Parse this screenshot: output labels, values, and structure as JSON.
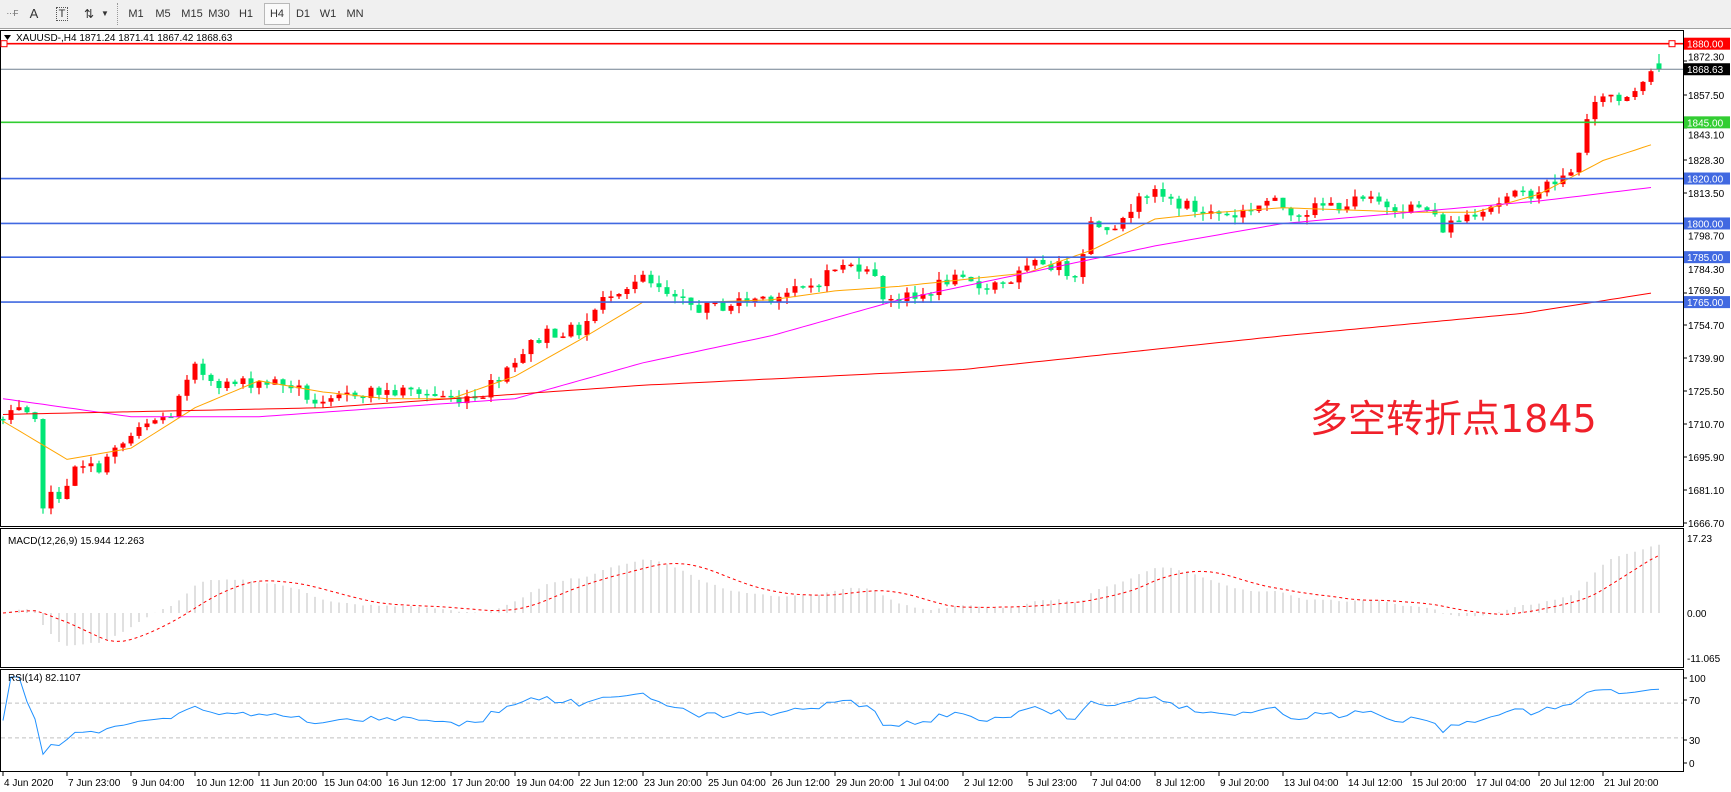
{
  "toolbar": {
    "icons": [
      "fibonacci-fan-icon",
      "text-icon",
      "text-label-icon",
      "arrows-icon",
      "dropdown-icon"
    ],
    "text_icon_label": "A",
    "timeframes": [
      "M1",
      "M5",
      "M15",
      "M30",
      "H1",
      "H4",
      "D1",
      "W1",
      "MN"
    ],
    "selected_timeframe": "H4"
  },
  "header": {
    "text": "XAUUSD-,H4  1871.24 1871.41 1867.42 1868.63"
  },
  "annotation": "多空转折点1845",
  "chart_data": {
    "type": "candlestick",
    "symbol": "XAUUSD-",
    "timeframe": "H4",
    "ohlc_last": {
      "open": 1871.24,
      "high": 1871.41,
      "low": 1867.42,
      "close": 1868.63
    },
    "bar_count": 208,
    "close_path": [
      [
        0,
        1712
      ],
      [
        2,
        1716
      ],
      [
        4,
        1710
      ],
      [
        5,
        1676
      ],
      [
        7,
        1680
      ],
      [
        9,
        1690
      ],
      [
        12,
        1692
      ],
      [
        16,
        1705
      ],
      [
        19,
        1712
      ],
      [
        21,
        1715
      ],
      [
        24,
        1735
      ],
      [
        28,
        1728
      ],
      [
        32,
        1730
      ],
      [
        36,
        1728
      ],
      [
        40,
        1718
      ],
      [
        44,
        1725
      ],
      [
        48,
        1725
      ],
      [
        52,
        1725
      ],
      [
        56,
        1722
      ],
      [
        60,
        1725
      ],
      [
        64,
        1740
      ],
      [
        68,
        1752
      ],
      [
        72,
        1752
      ],
      [
        76,
        1770
      ],
      [
        80,
        1775
      ],
      [
        84,
        1765
      ],
      [
        88,
        1762
      ],
      [
        92,
        1765
      ],
      [
        96,
        1768
      ],
      [
        100,
        1770
      ],
      [
        104,
        1780
      ],
      [
        108,
        1782
      ],
      [
        110,
        1768
      ],
      [
        114,
        1766
      ],
      [
        118,
        1775
      ],
      [
        122,
        1772
      ],
      [
        126,
        1775
      ],
      [
        130,
        1783
      ],
      [
        134,
        1778
      ],
      [
        136,
        1800
      ],
      [
        140,
        1800
      ],
      [
        142,
        1815
      ],
      [
        146,
        1810
      ],
      [
        150,
        1805
      ],
      [
        154,
        1804
      ],
      [
        158,
        1810
      ],
      [
        162,
        1805
      ],
      [
        166,
        1808
      ],
      [
        170,
        1810
      ],
      [
        174,
        1808
      ],
      [
        178,
        1806
      ],
      [
        180,
        1798
      ],
      [
        184,
        1806
      ],
      [
        188,
        1811
      ],
      [
        192,
        1815
      ],
      [
        196,
        1822
      ],
      [
        198,
        1845
      ],
      [
        200,
        1858
      ],
      [
        202,
        1855
      ],
      [
        204,
        1860
      ],
      [
        206,
        1870
      ],
      [
        207,
        1868.63
      ]
    ],
    "moving_averages": [
      {
        "color": "#ffa500",
        "path": [
          [
            0,
            1712
          ],
          [
            8,
            1695
          ],
          [
            16,
            1700
          ],
          [
            24,
            1718
          ],
          [
            32,
            1730
          ],
          [
            40,
            1725
          ],
          [
            48,
            1722
          ],
          [
            56,
            1722
          ],
          [
            64,
            1732
          ],
          [
            72,
            1748
          ],
          [
            80,
            1765
          ],
          [
            88,
            1765
          ],
          [
            96,
            1766
          ],
          [
            104,
            1770
          ],
          [
            112,
            1772
          ],
          [
            120,
            1775
          ],
          [
            128,
            1778
          ],
          [
            136,
            1788
          ],
          [
            144,
            1802
          ],
          [
            152,
            1805
          ],
          [
            160,
            1807
          ],
          [
            168,
            1806
          ],
          [
            176,
            1805
          ],
          [
            184,
            1805
          ],
          [
            192,
            1813
          ],
          [
            200,
            1828
          ],
          [
            206,
            1835
          ]
        ]
      },
      {
        "color": "#ff00ff",
        "path": [
          [
            0,
            1722
          ],
          [
            16,
            1714
          ],
          [
            32,
            1714
          ],
          [
            48,
            1718
          ],
          [
            64,
            1722
          ],
          [
            80,
            1738
          ],
          [
            96,
            1750
          ],
          [
            112,
            1766
          ],
          [
            128,
            1778
          ],
          [
            144,
            1790
          ],
          [
            160,
            1800
          ],
          [
            176,
            1805
          ],
          [
            192,
            1810
          ],
          [
            206,
            1816
          ]
        ]
      },
      {
        "color": "#ff0000",
        "path": [
          [
            0,
            1715
          ],
          [
            40,
            1718
          ],
          [
            80,
            1728
          ],
          [
            120,
            1735
          ],
          [
            160,
            1750
          ],
          [
            190,
            1760
          ],
          [
            206,
            1769
          ]
        ]
      }
    ],
    "price_ticks": [
      "1872.30",
      "1857.50",
      "1843.10",
      "1828.30",
      "1813.50",
      "1798.70",
      "1784.30",
      "1769.50",
      "1754.70",
      "1739.90",
      "1725.50",
      "1710.70",
      "1695.90",
      "1681.10",
      "1666.70"
    ],
    "price_range": [
      1666.7,
      1880
    ],
    "levels": [
      {
        "price": 1880.0,
        "label": "1880.00",
        "color": "#ff0000"
      },
      {
        "price": 1868.63,
        "label": "1868.63",
        "color": "#708090",
        "label_bg": "#000000"
      },
      {
        "price": 1845.0,
        "label": "1845.00",
        "color": "#32cd32"
      },
      {
        "price": 1820.0,
        "label": "1820.00",
        "color": "#4169e1"
      },
      {
        "price": 1800.0,
        "label": "1800.00",
        "color": "#4169e1"
      },
      {
        "price": 1785.0,
        "label": "1785.00",
        "color": "#4169e1"
      },
      {
        "price": 1765.0,
        "label": "1765.00",
        "color": "#4169e1"
      }
    ],
    "time_labels": [
      "4 Jun 2020",
      "7 Jun 23:00",
      "9 Jun 04:00",
      "10 Jun 12:00",
      "11 Jun 20:00",
      "15 Jun 04:00",
      "16 Jun 12:00",
      "17 Jun 20:00",
      "19 Jun 04:00",
      "22 Jun 12:00",
      "23 Jun 20:00",
      "25 Jun 04:00",
      "26 Jun 12:00",
      "29 Jun 20:00",
      "1 Jul 04:00",
      "2 Jul 12:00",
      "5 Jul 23:00",
      "7 Jul 04:00",
      "8 Jul 12:00",
      "9 Jul 20:00",
      "13 Jul 04:00",
      "14 Jul 12:00",
      "15 Jul 20:00",
      "17 Jul 04:00",
      "20 Jul 12:00",
      "21 Jul 20:00"
    ],
    "candle_colors": {
      "bull": "#ff0000",
      "bear": "#00e676"
    },
    "macd": {
      "label": "MACD(12,26,9) 15.944 12.263",
      "range": [
        -11.065,
        17.23
      ],
      "ticks": [
        "17.23",
        "0.00",
        "-11.065"
      ],
      "histogram_color": "#c0c0c0",
      "signal_color": "#ff0000"
    },
    "rsi": {
      "label": "RSI(14) 82.1107",
      "range": [
        0,
        100
      ],
      "ticks": [
        "100",
        "70",
        "30",
        "0"
      ],
      "levels": [
        70,
        30
      ],
      "color": "#1e90ff"
    }
  }
}
